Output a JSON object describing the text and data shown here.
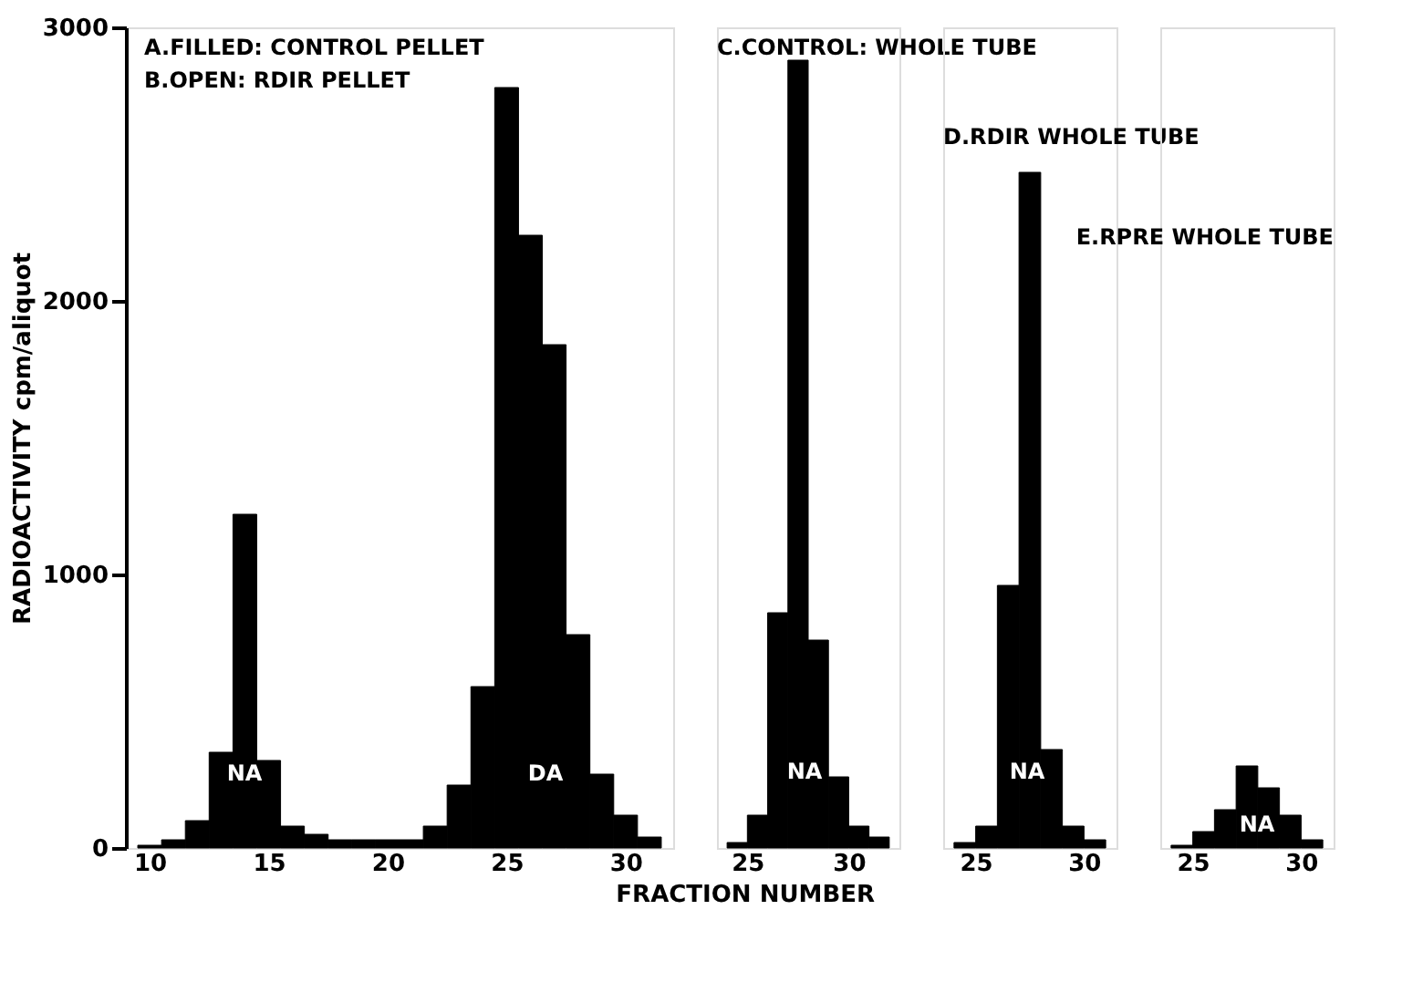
{
  "chart_data": [
    {
      "type": "histogram",
      "ylabel": "RADIOACTIVITY   cpm/aliquot",
      "xlabel": "FRACTION NUMBER",
      "color": "#000000",
      "bins": [
        9.5,
        10.5,
        11.5,
        12.5,
        13.5,
        14.5,
        15.5,
        16.5,
        17.5,
        18.5,
        19.5,
        20.5,
        21.5,
        22.5,
        23.5,
        24.5,
        25.5,
        26.5,
        27.5,
        28.5,
        29.5,
        30.5,
        31.5
      ],
      "values": [
        10,
        30,
        100,
        350,
        1220,
        320,
        80,
        50,
        30,
        30,
        30,
        30,
        80,
        230,
        590,
        2780,
        2240,
        1840,
        780,
        270,
        120,
        40
      ],
      "xlim": [
        9,
        32
      ],
      "xticks": [
        10,
        15,
        20,
        25,
        30
      ],
      "ylim": [
        0,
        3000
      ],
      "yticks": [
        0,
        1000,
        2000,
        3000
      ],
      "grid": false,
      "annotations": [
        "A.FILLED: CONTROL PELLET",
        "B.OPEN: RDIR PELLET",
        "NA",
        "DA"
      ]
    },
    {
      "type": "histogram",
      "color": "#000000",
      "bins": [
        24,
        25,
        26,
        27,
        28,
        29,
        30,
        31,
        32
      ],
      "values": [
        20,
        120,
        860,
        2880,
        760,
        260,
        80,
        40
      ],
      "xlim": [
        23.5,
        32.5
      ],
      "xticks": [
        25,
        30
      ],
      "ylim": [
        0,
        3000
      ],
      "tick_labels": "x",
      "grid": false,
      "annotations": [
        "C.CONTROL: WHOLE TUBE",
        "NA"
      ]
    },
    {
      "type": "histogram",
      "color": "#000000",
      "bins": [
        24,
        25,
        26,
        27,
        28,
        29,
        30,
        31
      ],
      "values": [
        20,
        80,
        960,
        2470,
        360,
        80,
        30
      ],
      "xlim": [
        23.5,
        31.5
      ],
      "xticks": [
        25,
        30
      ],
      "ylim": [
        0,
        3000
      ],
      "tick_labels": "x",
      "grid": false,
      "annotations": [
        "D.RDIR WHOLE TUBE",
        "NA"
      ]
    },
    {
      "type": "histogram",
      "color": "#000000",
      "bins": [
        24,
        25,
        26,
        27,
        28,
        29,
        30,
        31
      ],
      "values": [
        10,
        60,
        140,
        300,
        220,
        120,
        30
      ],
      "xlim": [
        23.5,
        31.5
      ],
      "xticks": [
        25,
        30
      ],
      "ylim": [
        0,
        3000
      ],
      "tick_labels": "x",
      "grid": false,
      "annotations": [
        "E.RPRE WHOLE TUBE",
        "NA"
      ]
    }
  ]
}
